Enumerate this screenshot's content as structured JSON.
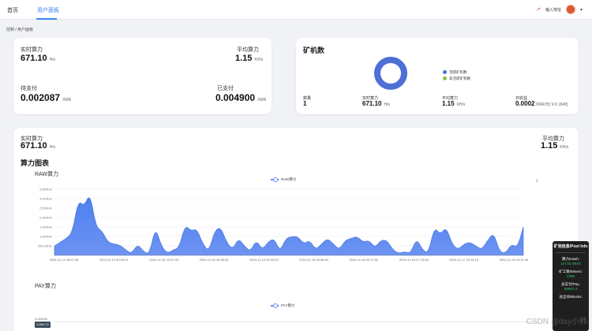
{
  "nav": {
    "tab_home": "首页",
    "tab_dashboard": "用户面板",
    "address_button": "输入地址"
  },
  "breadcrumb": "控制 / 用户面板",
  "stats_card": {
    "realtime_label": "实时算力",
    "realtime_value": "671.10",
    "realtime_unit": "H/s",
    "avg_label": "平均算力",
    "avg_value": "1.15",
    "avg_unit": "KH/s",
    "pending_label": "待支付",
    "pending_value": "0.002087",
    "pending_unit": "XMR",
    "paid_label": "已支付",
    "paid_value": "0.004900",
    "paid_unit": "XMR"
  },
  "miners_card": {
    "title": "矿机数",
    "legend_active": "活跃矿机数",
    "legend_inactive": "非活跃矿机数",
    "active_count": 1,
    "inactive_count": 0,
    "count_label": "数量",
    "count_value": "1",
    "realtime_label": "实时算力",
    "realtime_value": "671.10",
    "realtime_unit": "H/s",
    "avg_label": "平均算力",
    "avg_value": "1.15",
    "avg_unit": "KH/s",
    "daily_label": "日收益",
    "daily_value": "0.0002",
    "daily_unit": "XMR/日(￥0.1848)"
  },
  "chart_card": {
    "realtime_label": "实时算力",
    "realtime_value": "671.10",
    "realtime_unit": "H/s",
    "avg_label": "平均算力",
    "avg_value": "1.15",
    "avg_unit": "KH/s",
    "section_title": "算力图表",
    "raw_title": "RAW算力",
    "pay_title": "PAY算力",
    "pay_tooltip": "3,864.72",
    "pay_tick": "4,000H/s"
  },
  "chart_data": [
    {
      "type": "area",
      "title": "RAW算力",
      "series": [
        {
          "name": "RAW算力",
          "values": [
            500,
            700,
            900,
            1200,
            2900,
            2600,
            3300,
            1500,
            1300,
            700,
            600,
            550,
            300,
            80,
            600,
            200,
            60,
            1500,
            500,
            100,
            300,
            400,
            1600,
            1300,
            1400,
            600,
            200,
            1300,
            1500,
            700,
            300,
            900,
            500,
            200,
            800,
            300,
            700,
            900,
            200,
            900,
            1000,
            1000,
            600,
            800,
            300,
            600,
            900,
            600,
            300,
            800,
            900,
            1000,
            700,
            800,
            400,
            800,
            800,
            300,
            100,
            200,
            100,
            900,
            300,
            100,
            1500,
            1100,
            1500,
            600,
            300,
            600,
            700,
            500,
            300,
            800,
            1200,
            200,
            100,
            600,
            400,
            1500
          ]
        }
      ],
      "x_tick_labels": [
        "2024-11-13 18:57:36",
        "2024-11-13 20:32:01",
        "2024-11-15 10:21:20",
        "2024-11-15 18:38:20",
        "2024-11-15 23:15:23",
        "2024-11-16 09:56:52",
        "2024-11-16 04:17:52",
        "2024-11-16 07:13:48",
        "2024-11-17 10:14:15",
        "2024-11-18 10:21:36"
      ],
      "y_tick_labels": [
        "500.00H/s",
        "1,000H/s",
        "1,500H/s",
        "2,000H/s",
        "2,500H/s",
        "3,000H/s",
        "3,500H/s"
      ],
      "ylim": [
        0,
        3500
      ],
      "color": "#4f80f0"
    },
    {
      "type": "area",
      "title": "PAY算力",
      "series": [
        {
          "name": "PAY算力",
          "values": []
        }
      ],
      "y_tick_labels": [
        "4,000H/s"
      ],
      "color": "#4f80f0"
    }
  ],
  "pool_panel": {
    "title": "矿池信息/Pool Info",
    "hash_label": "算力/Hash:",
    "hash_value": "127.01 MH/s",
    "miners_label": "矿工数/Miners:",
    "miners_value": "2396",
    "pay_label": "总支付/Pay:",
    "pay_value": "66807.3",
    "blocks_label": "总出块/Blocks:",
    "blocks_value": ""
  },
  "watermark": "CSDN @day小韩",
  "colors": {
    "accent": "#3b82f6",
    "donut": "#4e6fd6",
    "inactive": "#8bc34a",
    "area": "#4f80f0"
  }
}
